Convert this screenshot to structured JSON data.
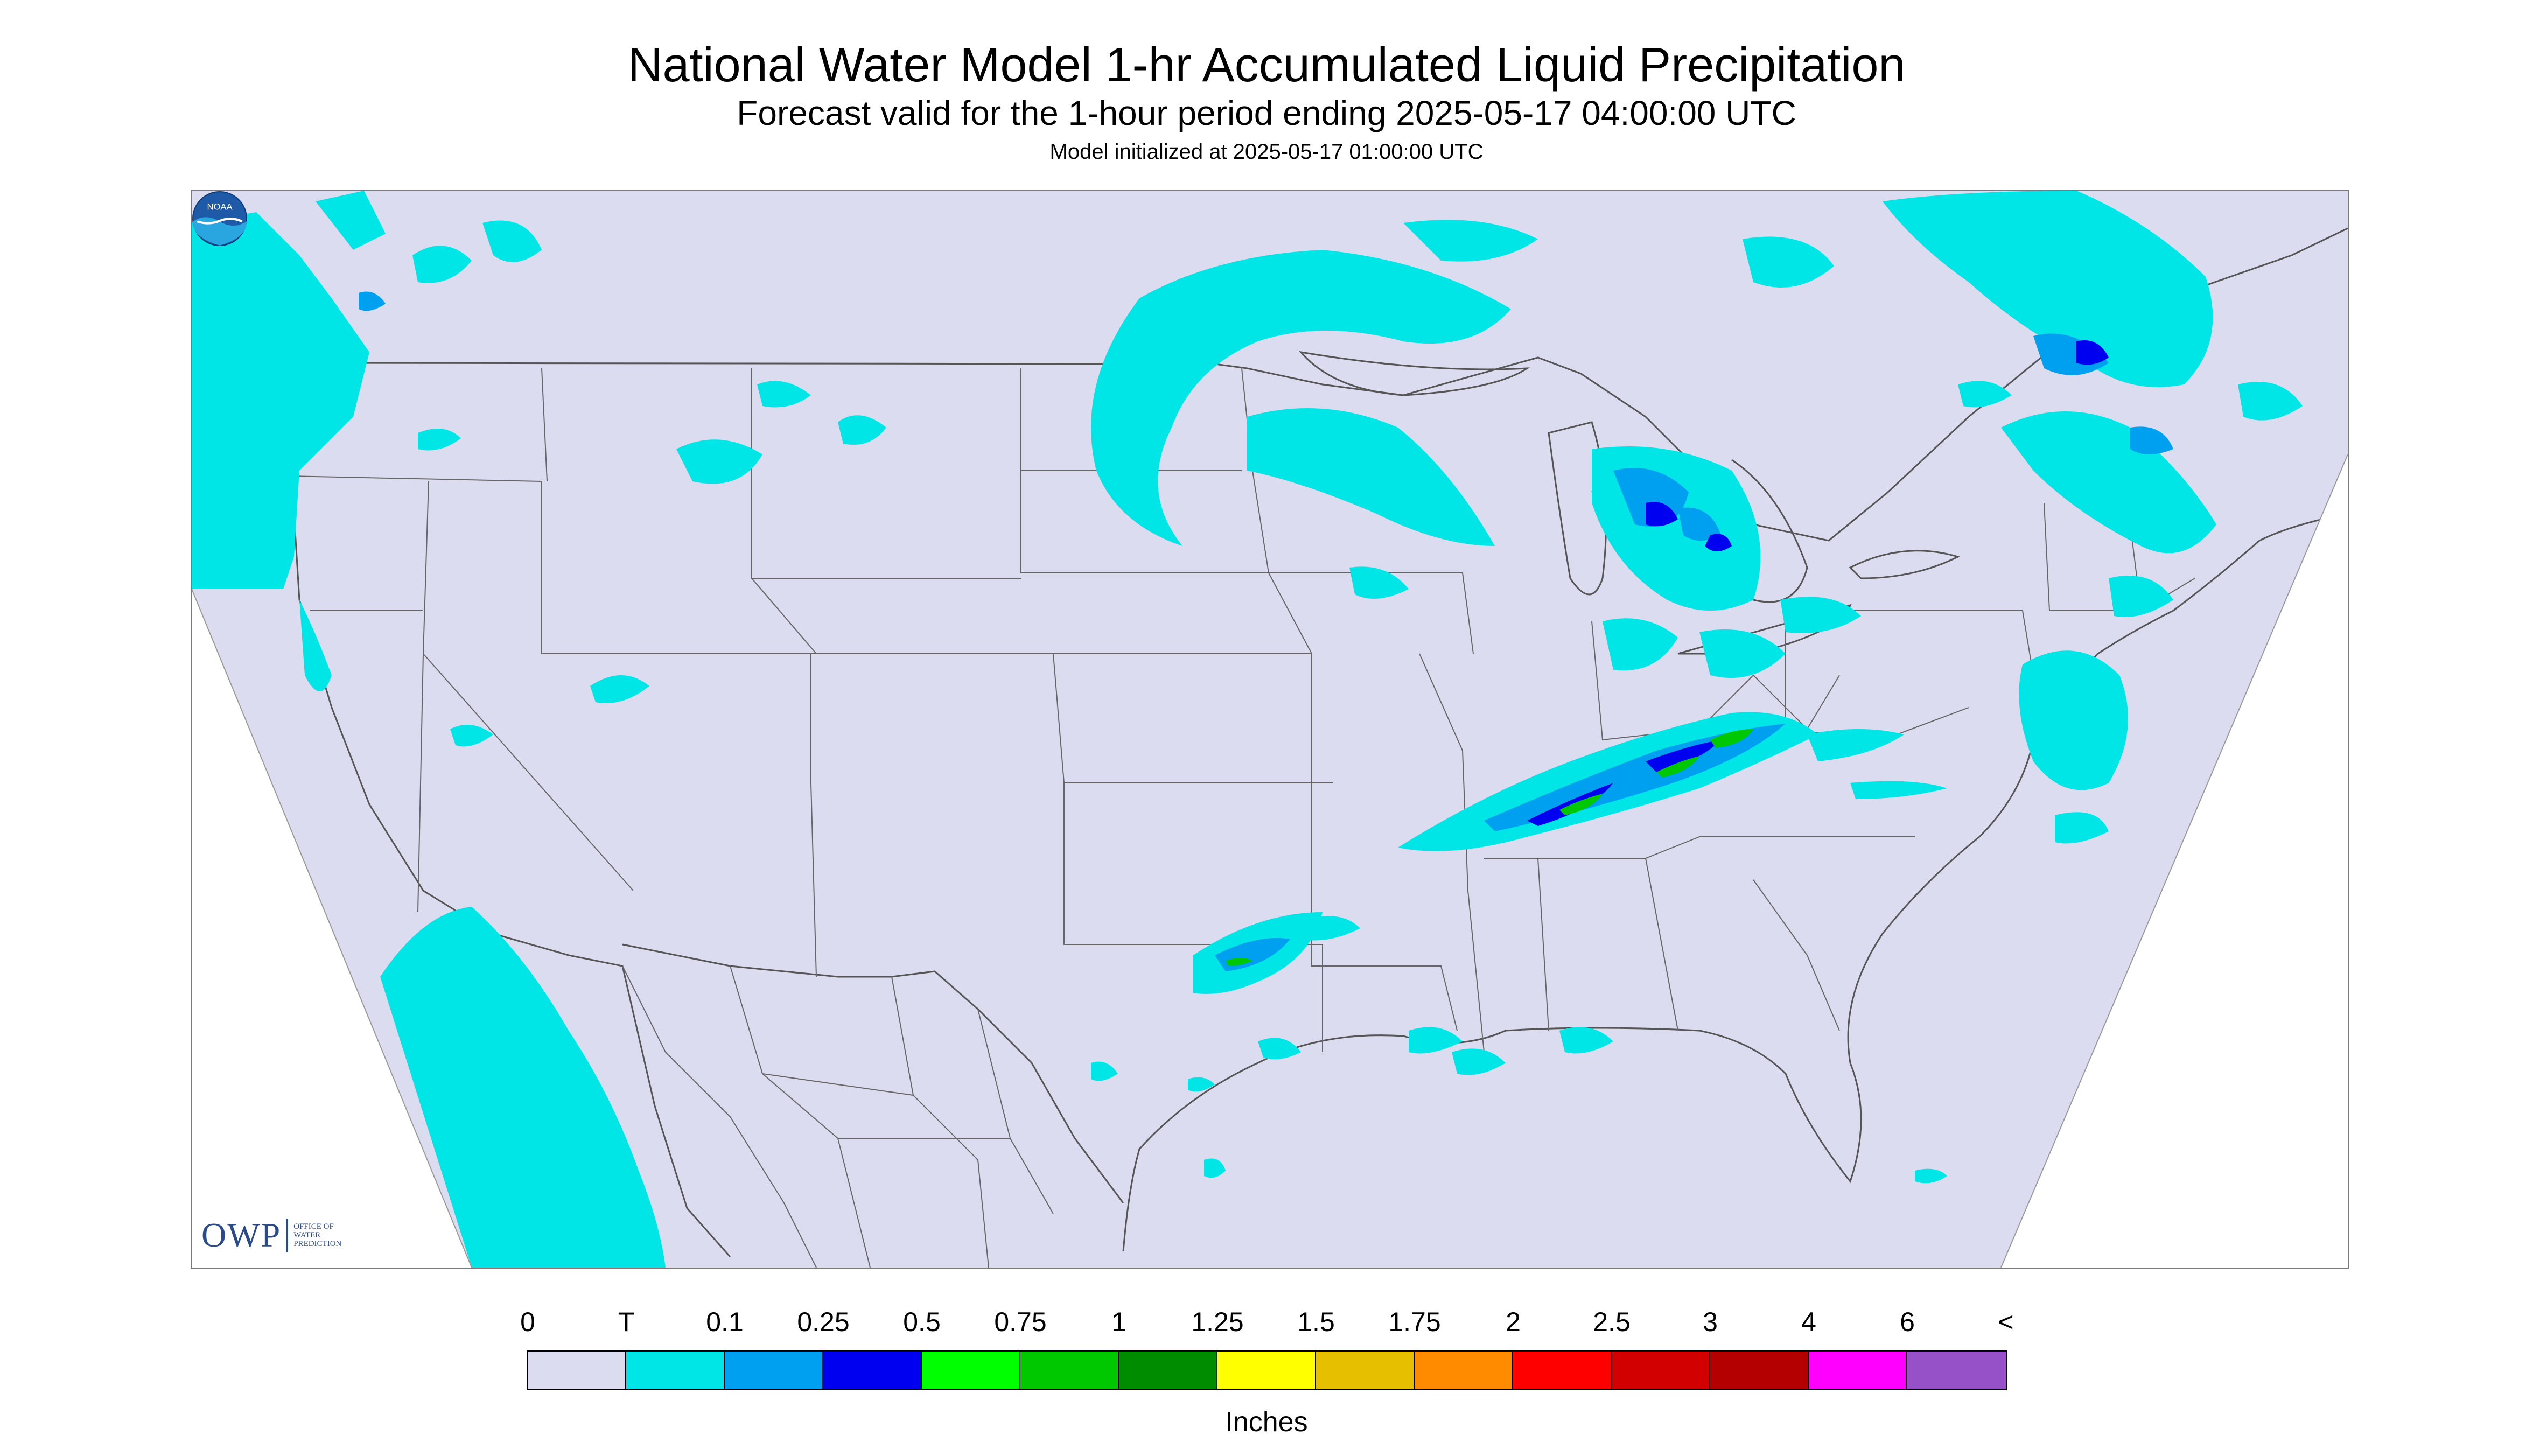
{
  "header": {
    "title": "National Water Model 1-hr Accumulated Liquid Precipitation",
    "subtitle": "Forecast valid for the 1-hour period ending 2025-05-17 04:00:00 UTC",
    "init_line": "Model initialized at 2025-05-17 01:00:00 UTC"
  },
  "logos": {
    "owp": {
      "letters": "OWP",
      "line1": "OFFICE OF",
      "line2": "WATER",
      "line3": "PREDICTION"
    },
    "noaa": {
      "text": "NOAA"
    }
  },
  "map": {
    "background_color": "#dcdcf0",
    "land_outline_color": "#555555",
    "precip_regions": [
      {
        "name": "pacific-northwest-coast",
        "category": "T"
      },
      {
        "name": "california-baja-offshore",
        "category": "T"
      },
      {
        "name": "upper-midwest-swirl",
        "category": "T"
      },
      {
        "name": "michigan-great-lakes",
        "category": "0.1"
      },
      {
        "name": "ohio-valley-band",
        "category": "0.5"
      },
      {
        "name": "texas-louisiana-cells",
        "category": "0.25"
      },
      {
        "name": "new-england-maritimes",
        "category": "0.1"
      },
      {
        "name": "mid-atlantic-offshore",
        "category": "T"
      },
      {
        "name": "gulf-coast-cells",
        "category": "T"
      }
    ]
  },
  "legend": {
    "labels": [
      "0",
      "T",
      "0.1",
      "0.25",
      "0.5",
      "0.75",
      "1",
      "1.25",
      "1.5",
      "1.75",
      "2",
      "2.5",
      "3",
      "4",
      "6",
      "<"
    ],
    "colors": [
      "#dcdcf0",
      "#00e6e6",
      "#00a0f0",
      "#0000f0",
      "#00ff00",
      "#00c800",
      "#008c00",
      "#ffff00",
      "#e6c000",
      "#ff8c00",
      "#ff0000",
      "#d20000",
      "#b40000",
      "#ff00ff",
      "#9650c8"
    ],
    "units": "Inches"
  }
}
